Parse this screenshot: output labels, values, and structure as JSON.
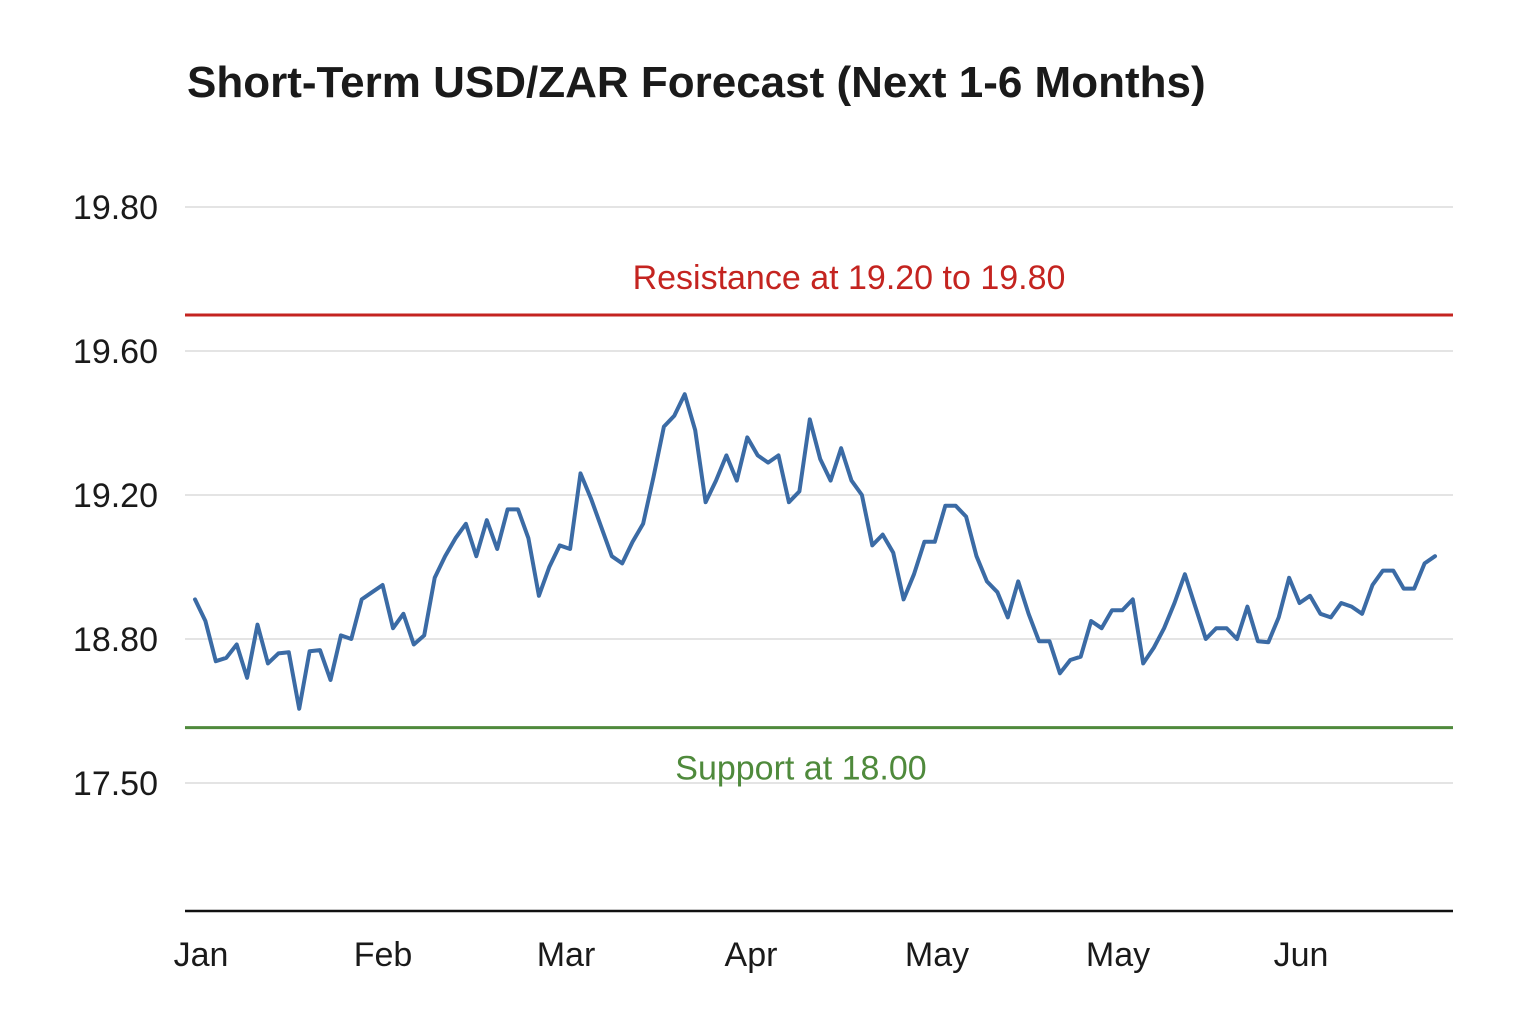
{
  "chart_data": {
    "type": "line",
    "title": "Short-Term USD/ZAR Forecast (Next 1-6 Months)",
    "xlabel": "",
    "ylabel": "",
    "x_tick_labels": [
      "Jan",
      "Feb",
      "Mar",
      "Apr",
      "May",
      "May",
      "Jun"
    ],
    "y_tick_labels": [
      "19.80",
      "19.60",
      "19.20",
      "18.80",
      "17.50"
    ],
    "y_tick_values": [
      19.8,
      19.6,
      19.2,
      18.8,
      17.5
    ],
    "grid": true,
    "legend": "none",
    "series": [
      {
        "color": "#3b6ba5",
        "values": [
          18.91,
          18.85,
          18.6,
          18.63,
          18.75,
          18.45,
          18.84,
          18.58,
          18.67,
          18.68,
          18.17,
          18.69,
          18.7,
          18.43,
          18.81,
          18.8,
          18.91,
          18.93,
          18.95,
          18.83,
          18.87,
          18.75,
          18.81,
          18.97,
          19.03,
          19.08,
          19.12,
          19.03,
          19.13,
          19.05,
          19.16,
          19.16,
          19.08,
          18.92,
          19.0,
          19.06,
          19.05,
          19.26,
          19.19,
          19.11,
          19.03,
          19.01,
          19.07,
          19.12,
          19.25,
          19.39,
          19.42,
          19.48,
          19.38,
          19.18,
          19.24,
          19.31,
          19.24,
          19.36,
          19.31,
          19.29,
          19.31,
          19.18,
          19.21,
          19.41,
          19.3,
          19.24,
          19.33,
          19.24,
          19.2,
          19.06,
          19.09,
          19.04,
          18.91,
          18.98,
          19.07,
          19.07,
          19.17,
          19.17,
          19.14,
          19.03,
          18.96,
          18.93,
          18.86,
          18.96,
          18.87,
          18.78,
          18.78,
          18.49,
          18.61,
          18.64,
          18.85,
          18.83,
          18.88,
          18.88,
          18.91,
          18.58,
          18.72,
          18.83,
          18.9,
          18.98,
          18.89,
          18.8,
          18.83,
          18.83,
          18.8,
          18.89,
          18.78,
          18.77,
          18.86,
          18.97,
          18.9,
          18.92,
          18.87,
          18.86,
          18.9,
          18.89,
          18.87,
          18.95,
          18.99,
          18.99,
          18.94,
          18.94,
          19.01,
          19.03
        ]
      }
    ],
    "reference_lines": [
      {
        "label": "Resistance at 19.20 to 19.80",
        "value": 19.65,
        "color": "#c42420"
      },
      {
        "label": "Support at 18.00",
        "value": 18.0,
        "color": "#4f8a3c"
      }
    ]
  }
}
